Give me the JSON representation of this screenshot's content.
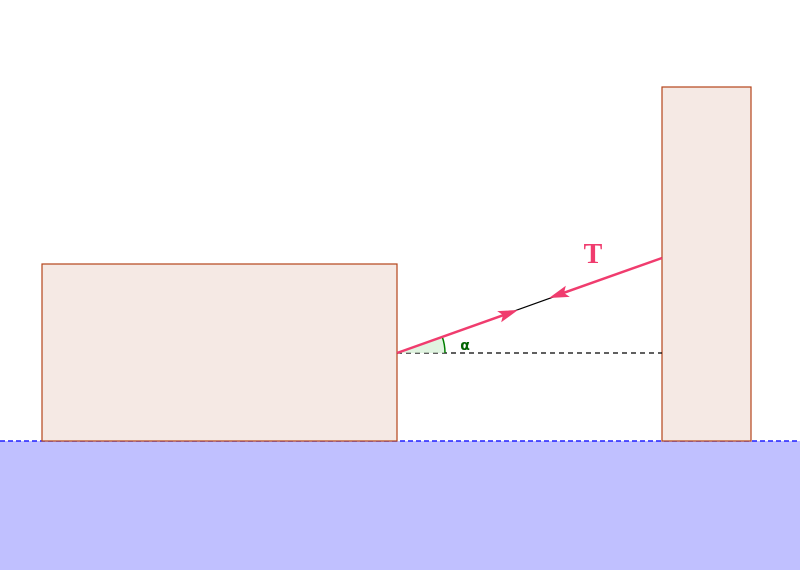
{
  "labels": {
    "force": "T",
    "angle": "α"
  }
}
